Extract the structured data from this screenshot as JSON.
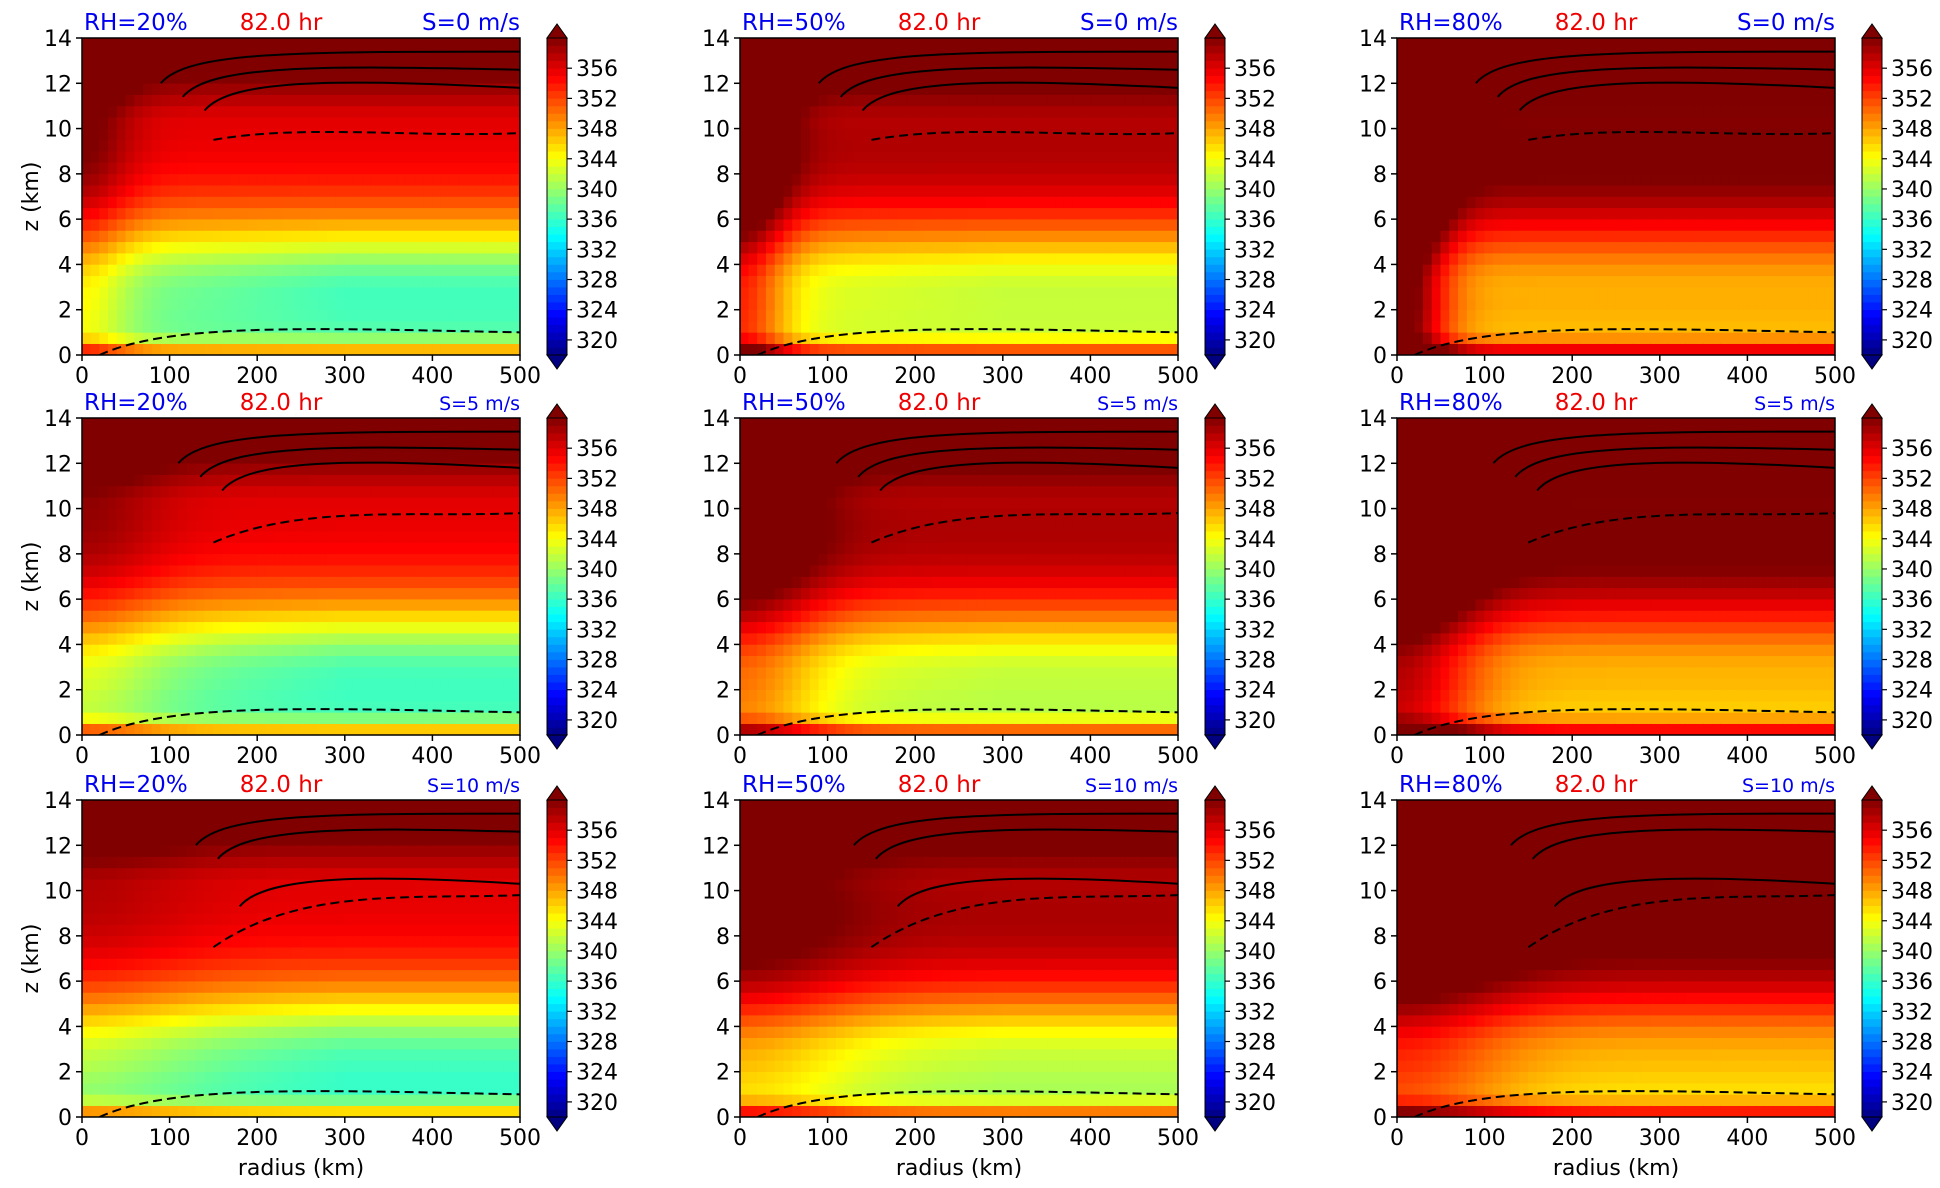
{
  "chart_data": {
    "type": "heatmap",
    "layout": {
      "rows": 3,
      "cols": 3
    },
    "xlabel": "radius (km)",
    "ylabel": "z (km)",
    "xlim": [
      0,
      500
    ],
    "ylim": [
      0,
      14
    ],
    "xticks": [
      0,
      100,
      200,
      300,
      400,
      500
    ],
    "yticks": [
      0,
      2,
      4,
      6,
      8,
      10,
      12,
      14
    ],
    "colorbar": {
      "ticks": [
        320,
        324,
        328,
        332,
        336,
        340,
        344,
        348,
        352,
        356
      ],
      "range": [
        318,
        360
      ],
      "colormap": "jet",
      "extend": "both"
    },
    "colors": {
      "rh_label": "#0000ee",
      "time_label": "#ee0000",
      "shear_label": "#0000ee"
    },
    "panels": [
      {
        "rh": "RH=20%",
        "time": "82.0 hr",
        "shear": "S=0 m/s",
        "rh_value": 20,
        "shear_value": 0
      },
      {
        "rh": "RH=50%",
        "time": "82.0 hr",
        "shear": "S=0 m/s",
        "rh_value": 50,
        "shear_value": 0
      },
      {
        "rh": "RH=80%",
        "time": "82.0 hr",
        "shear": "S=0 m/s",
        "rh_value": 80,
        "shear_value": 0
      },
      {
        "rh": "RH=20%",
        "time": "82.0 hr",
        "shear": "S=5 m/s",
        "rh_value": 20,
        "shear_value": 5
      },
      {
        "rh": "RH=50%",
        "time": "82.0 hr",
        "shear": "S=5 m/s",
        "rh_value": 50,
        "shear_value": 5
      },
      {
        "rh": "RH=80%",
        "time": "82.0 hr",
        "shear": "S=5 m/s",
        "rh_value": 80,
        "shear_value": 5
      },
      {
        "rh": "RH=20%",
        "time": "82.0 hr",
        "shear": "S=10 m/s",
        "rh_value": 20,
        "shear_value": 10
      },
      {
        "rh": "RH=50%",
        "time": "82.0 hr",
        "shear": "S=10 m/s",
        "rh_value": 50,
        "shear_value": 10
      },
      {
        "rh": "RH=80%",
        "time": "82.0 hr",
        "shear": "S=10 m/s",
        "rh_value": 80,
        "shear_value": 10
      }
    ]
  }
}
